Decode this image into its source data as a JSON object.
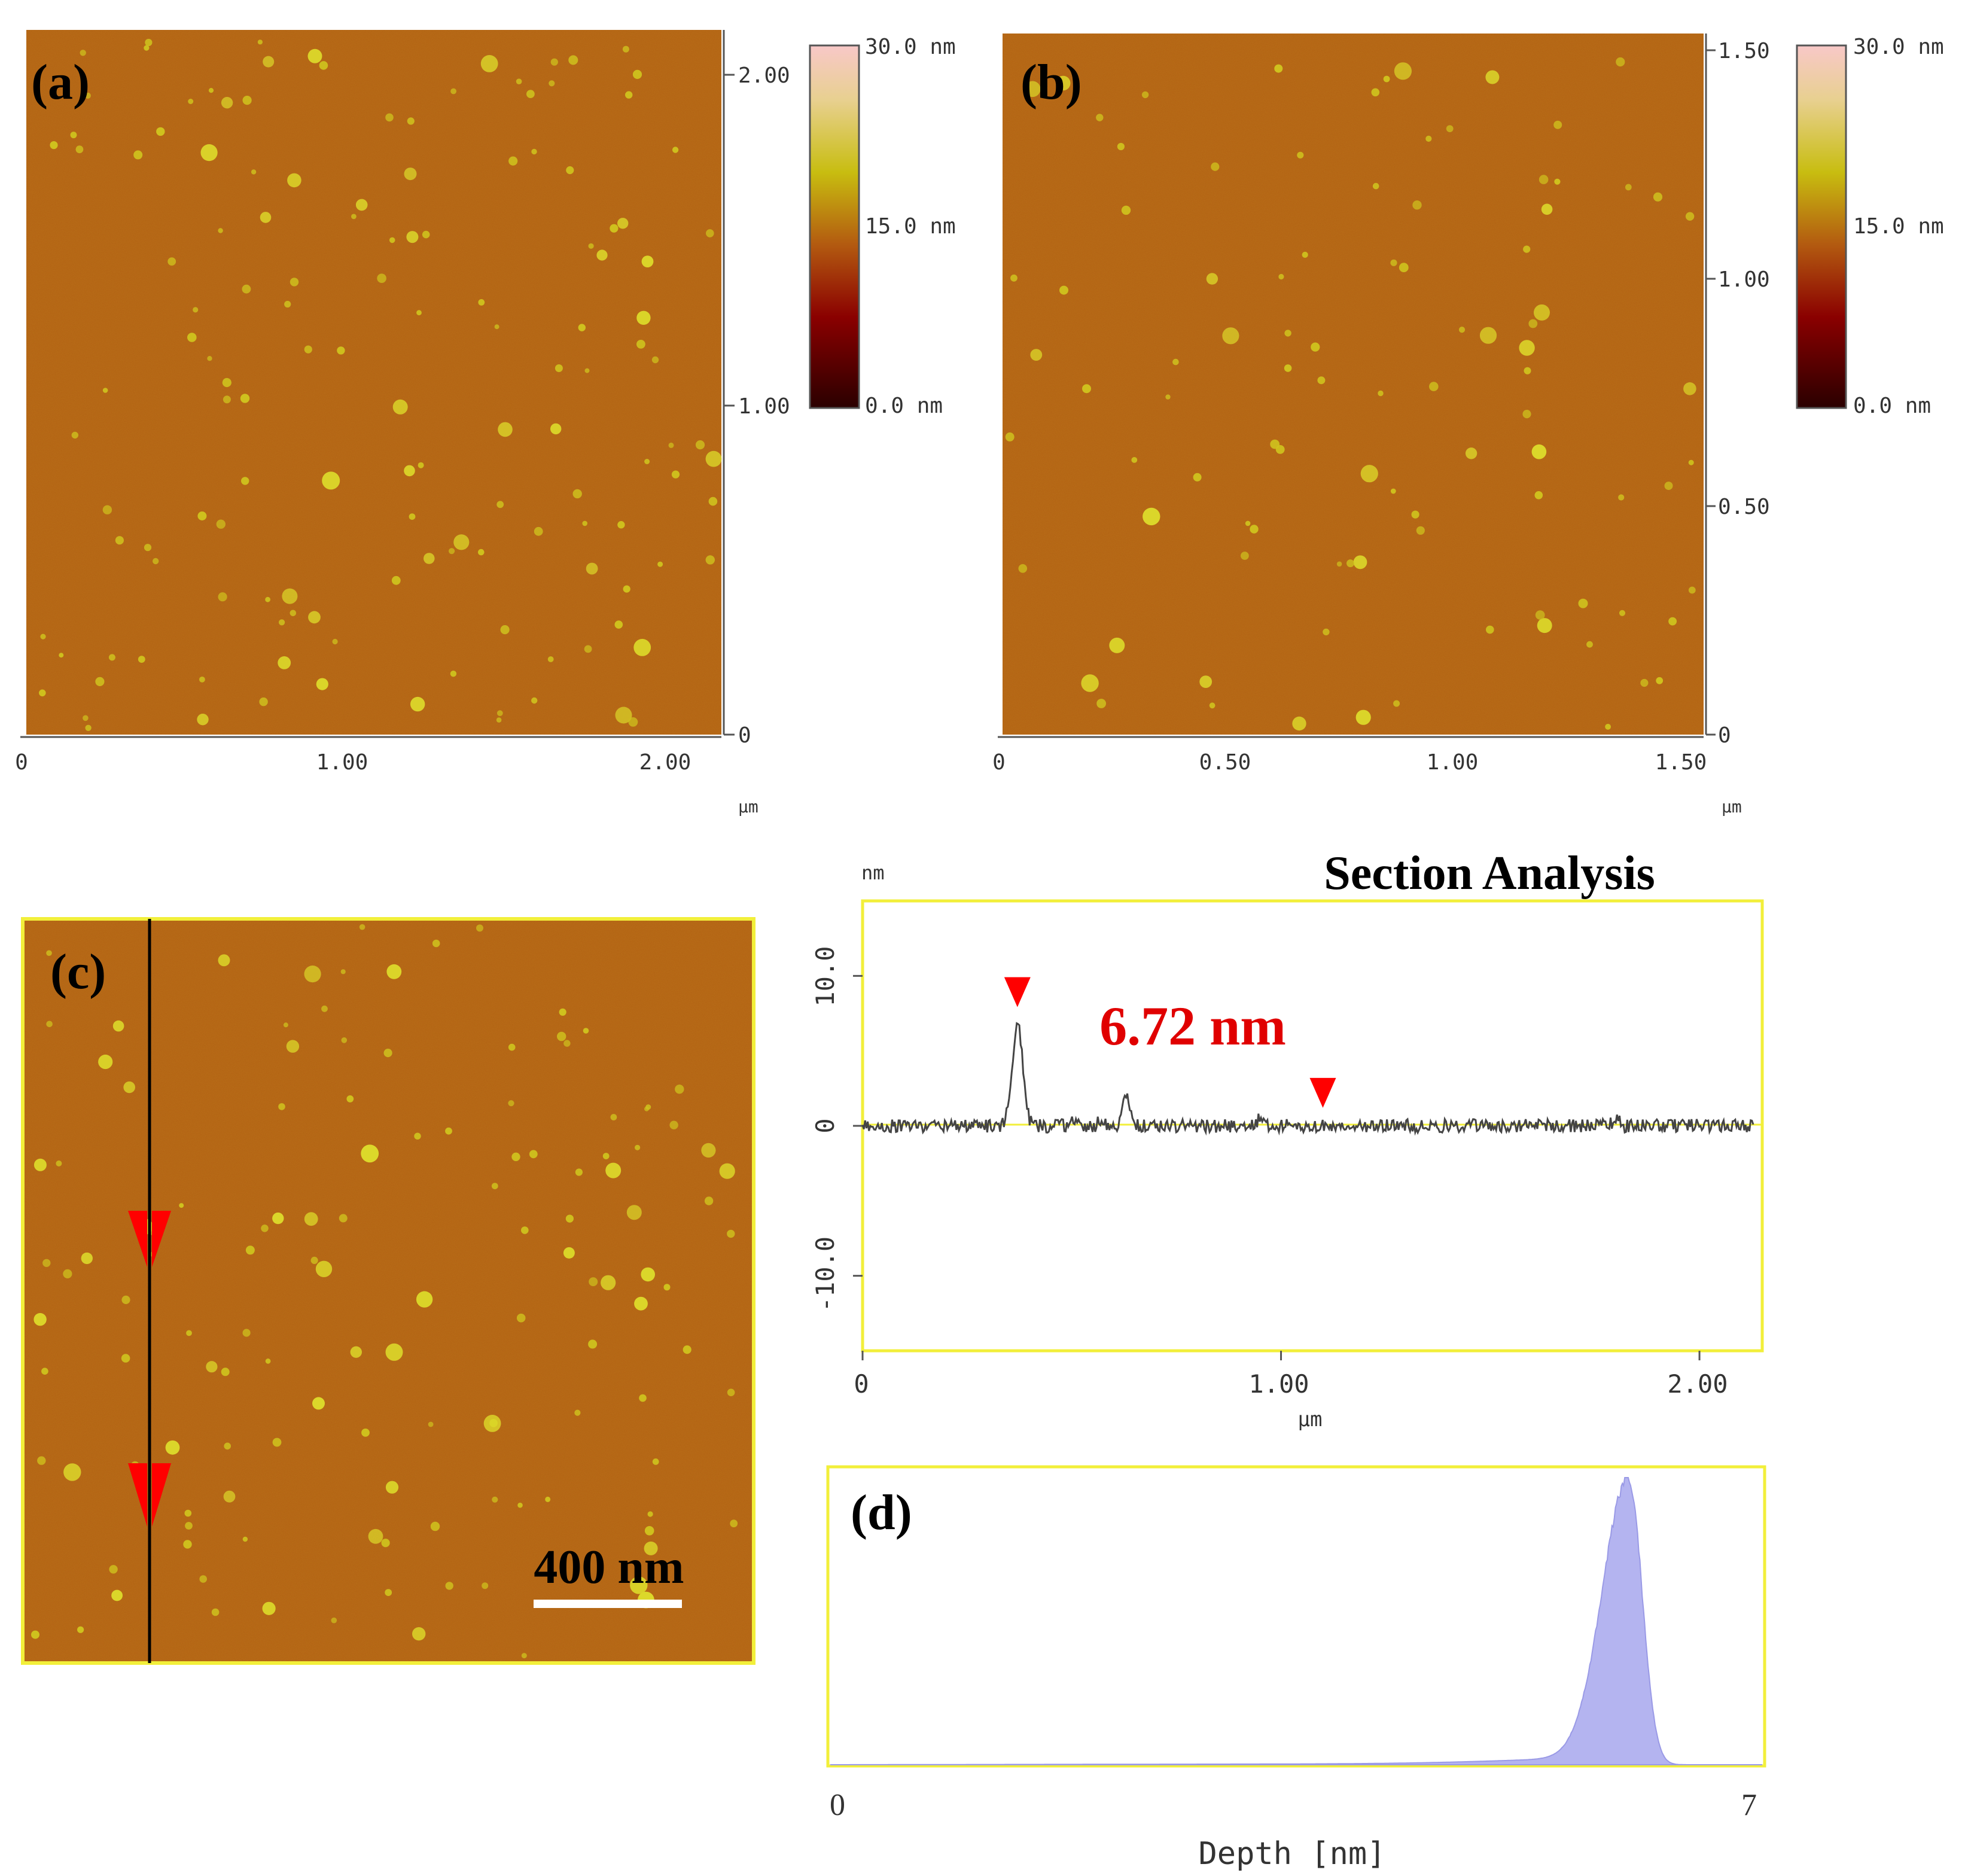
{
  "panels": {
    "a": {
      "label": "(a)",
      "colorbar": {
        "top": "30.0  nm",
        "mid": "15.0  nm",
        "bottom": "0.0  nm"
      },
      "y_ticks": [
        "2.00",
        "1.00",
        "0"
      ],
      "x_ticks": [
        "0",
        "1.00",
        "2.00"
      ],
      "unit": "µm"
    },
    "b": {
      "label": "(b)",
      "colorbar": {
        "top": "30.0  nm",
        "mid": "15.0  nm",
        "bottom": "0.0  nm"
      },
      "y_ticks": [
        "1.50",
        "1.00",
        "0.50",
        "0"
      ],
      "x_ticks": [
        "0",
        "0.50",
        "1.00",
        "1.50"
      ],
      "unit": "µm"
    },
    "c": {
      "label": "(c)",
      "scale_bar": "400 nm"
    },
    "d": {
      "label": "(d)",
      "x_min": "0",
      "x_max": "7",
      "xlabel": "Depth [nm]"
    }
  },
  "section": {
    "title": "Section Analysis",
    "yunit": "nm",
    "annotation": "6.72 nm",
    "y_ticks": [
      "10.0",
      "0",
      "-10.0"
    ],
    "x_ticks": [
      "0",
      "1.00",
      "2.00"
    ],
    "xunit": "µm"
  },
  "colors": {
    "afm_background": "#b25f12",
    "particle": "#d9d224",
    "frame_yellow": "#f2ef3a",
    "marker_red": "#ff0000",
    "annotation_red": "#e00000",
    "histogram_fill": "#b4b4f0"
  },
  "chart_data": [
    {
      "type": "line",
      "title": "Section Analysis",
      "xlabel": "µm",
      "ylabel": "nm",
      "xlim": [
        0,
        2.15
      ],
      "ylim": [
        -15,
        15
      ],
      "annotation": "6.72 nm",
      "markers_x": [
        0.37,
        1.1
      ],
      "peaks": [
        {
          "x": 0.37,
          "height": 6.72,
          "width": 0.018
        },
        {
          "x": 0.63,
          "height": 1.9,
          "width": 0.012
        },
        {
          "x": 0.5,
          "height": 0.5,
          "width": 0.01
        },
        {
          "x": 0.57,
          "height": 0.4,
          "width": 0.01
        },
        {
          "x": 0.95,
          "height": 0.5,
          "width": 0.01
        },
        {
          "x": 1.8,
          "height": 0.6,
          "width": 0.01
        }
      ],
      "baseline": 0
    },
    {
      "type": "area",
      "title": "",
      "xlabel": "Depth [nm]",
      "xlim": [
        0,
        7
      ],
      "distribution": {
        "peak": 6.0,
        "left_width": 0.28,
        "right_width": 0.14
      },
      "ylim": [
        0,
        1
      ]
    }
  ]
}
